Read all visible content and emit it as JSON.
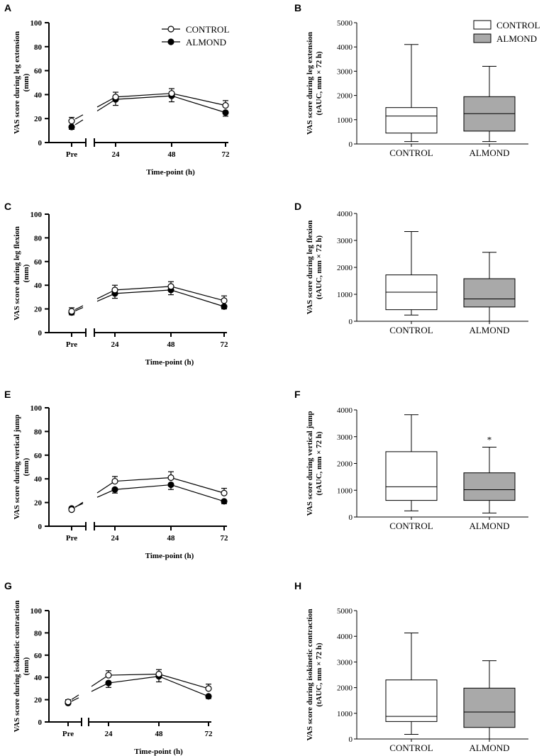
{
  "figure_title": "",
  "colors": {
    "control_fill": "#ffffff",
    "almond_fill": "#a9a9a9",
    "line": "#000000"
  },
  "chart_data": [
    {
      "panel": "A",
      "type": "line",
      "ylabel": [
        "VAS score during leg extension",
        "(mm)"
      ],
      "xlabel": "Time-point (h)",
      "x": [
        "Pre",
        "24",
        "48",
        "72"
      ],
      "ylim": [
        0,
        100
      ],
      "yticks": [
        0,
        20,
        40,
        60,
        80,
        100
      ],
      "legend": "top-right",
      "series": [
        {
          "name": "CONTROL",
          "marker": "open-circle",
          "values": [
            18,
            38,
            41,
            31
          ],
          "err": [
            3,
            4,
            4,
            4
          ]
        },
        {
          "name": "ALMOND",
          "marker": "filled-circle",
          "values": [
            13,
            36,
            39,
            25
          ],
          "err": [
            2,
            5,
            5,
            3
          ]
        }
      ]
    },
    {
      "panel": "B",
      "type": "box",
      "ylabel": [
        "VAS score during leg extension",
        "(tAUC, mm × 72 h)"
      ],
      "categories": [
        "CONTROL",
        "ALMOND"
      ],
      "ylim": [
        0,
        5000
      ],
      "yticks": [
        0,
        1000,
        2000,
        3000,
        4000,
        5000
      ],
      "legend": "top-right",
      "legend_entries": [
        "CONTROL",
        "ALMOND"
      ],
      "boxes": [
        {
          "min": 100,
          "q1": 450,
          "median": 1150,
          "q3": 1500,
          "max": 4100
        },
        {
          "min": 100,
          "q1": 530,
          "median": 1250,
          "q3": 1950,
          "max": 3200
        }
      ]
    },
    {
      "panel": "C",
      "type": "line",
      "ylabel": [
        "VAS score during leg flexion",
        "(mm)"
      ],
      "xlabel": "Time-point (h)",
      "x": [
        "Pre",
        "24",
        "48",
        "72"
      ],
      "ylim": [
        0,
        100
      ],
      "yticks": [
        0,
        20,
        40,
        60,
        80,
        100
      ],
      "series": [
        {
          "name": "CONTROL",
          "marker": "open-circle",
          "values": [
            18,
            36,
            39,
            27
          ],
          "err": [
            3,
            4,
            4,
            4
          ]
        },
        {
          "name": "ALMOND",
          "marker": "filled-circle",
          "values": [
            17,
            33,
            36,
            22
          ],
          "err": [
            2,
            4,
            4,
            2
          ]
        }
      ]
    },
    {
      "panel": "D",
      "type": "box",
      "ylabel": [
        "VAS score during leg flexion",
        "(tAUC, mm × 72 h)"
      ],
      "categories": [
        "CONTROL",
        "ALMOND"
      ],
      "ylim": [
        0,
        4000
      ],
      "yticks": [
        0,
        1000,
        2000,
        3000,
        4000
      ],
      "boxes": [
        {
          "min": 230,
          "q1": 430,
          "median": 1080,
          "q3": 1720,
          "max": 3330
        },
        {
          "min": 0,
          "q1": 530,
          "median": 830,
          "q3": 1580,
          "max": 2560
        }
      ]
    },
    {
      "panel": "E",
      "type": "line",
      "ylabel": [
        "VAS score during vertical jump",
        "(mm)"
      ],
      "xlabel": "Time-point (h)",
      "x": [
        "Pre",
        "24",
        "48",
        "72"
      ],
      "ylim": [
        0,
        100
      ],
      "yticks": [
        0,
        20,
        40,
        60,
        80,
        100
      ],
      "series": [
        {
          "name": "CONTROL",
          "marker": "open-circle",
          "values": [
            14,
            38,
            41,
            28
          ],
          "err": [
            2,
            4,
            5,
            4
          ]
        },
        {
          "name": "ALMOND",
          "marker": "filled-circle",
          "values": [
            15,
            31,
            35,
            21
          ],
          "err": [
            1,
            3,
            4,
            2
          ]
        }
      ]
    },
    {
      "panel": "F",
      "type": "box",
      "ylabel": [
        "VAS score during vertical jump",
        "(tAUC, mm × 72 h)"
      ],
      "categories": [
        "CONTROL",
        "ALMOND"
      ],
      "ylim": [
        0,
        4000
      ],
      "yticks": [
        0,
        1000,
        2000,
        3000,
        4000
      ],
      "annotation": "*",
      "boxes": [
        {
          "min": 230,
          "q1": 620,
          "median": 1130,
          "q3": 2440,
          "max": 3820
        },
        {
          "min": 150,
          "q1": 620,
          "median": 1020,
          "q3": 1650,
          "max": 2610
        }
      ]
    },
    {
      "panel": "G",
      "type": "line",
      "ylabel": [
        "VAS score during isokinetic contraction",
        "(mm)"
      ],
      "xlabel": "Time-point (h)",
      "x": [
        "Pre",
        "24",
        "48",
        "72"
      ],
      "ylim": [
        0,
        100
      ],
      "yticks": [
        0,
        20,
        40,
        60,
        80,
        100
      ],
      "series": [
        {
          "name": "CONTROL",
          "marker": "open-circle",
          "values": [
            18,
            42,
            43,
            30
          ],
          "err": [
            2,
            4,
            4,
            4
          ]
        },
        {
          "name": "ALMOND",
          "marker": "filled-circle",
          "values": [
            17,
            35,
            41,
            23
          ],
          "err": [
            1,
            4,
            5,
            2
          ]
        }
      ]
    },
    {
      "panel": "H",
      "type": "box",
      "ylabel": [
        "VAS score during isokinetic contraction",
        "(tAUC, mm × 72 h)"
      ],
      "categories": [
        "CONTROL",
        "ALMOND"
      ],
      "ylim": [
        0,
        5000
      ],
      "yticks": [
        0,
        1000,
        2000,
        3000,
        4000,
        5000
      ],
      "boxes": [
        {
          "min": 180,
          "q1": 680,
          "median": 880,
          "q3": 2300,
          "max": 4130
        },
        {
          "min": 0,
          "q1": 450,
          "median": 1050,
          "q3": 1980,
          "max": 3050
        }
      ]
    }
  ]
}
